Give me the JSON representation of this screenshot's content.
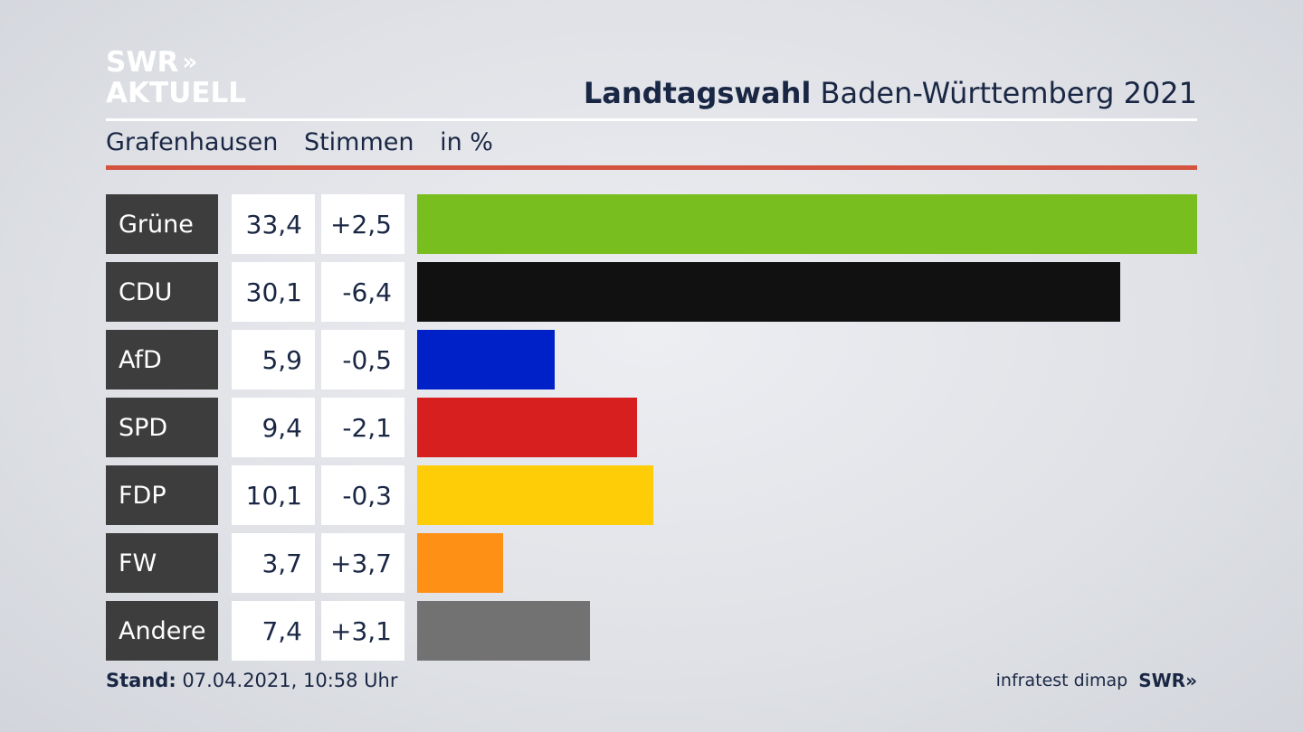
{
  "logo": {
    "line1": "SWR",
    "line2": "AKTUELL",
    "chevrons": "»"
  },
  "header": {
    "title_bold": "Landtagswahl",
    "title_rest": " Baden-Württemberg 2021"
  },
  "subheader": {
    "place": "Grafenhausen",
    "measure": "Stimmen",
    "unit": "in %"
  },
  "footer": {
    "stand_label": "Stand:",
    "stand_value": " 07.04.2021, 10:58 Uhr",
    "source": "infratest dimap",
    "brand": "SWR",
    "brand_chevrons": "»"
  },
  "chart_data": {
    "type": "bar",
    "orientation": "horizontal",
    "categories": [
      "Grüne",
      "CDU",
      "AfD",
      "SPD",
      "FDP",
      "FW",
      "Andere"
    ],
    "values": [
      33.4,
      30.1,
      5.9,
      9.4,
      10.1,
      3.7,
      7.4
    ],
    "values_label": [
      "33,4",
      "30,1",
      "5,9",
      "9,4",
      "10,1",
      "3,7",
      "7,4"
    ],
    "changes": [
      2.5,
      -6.4,
      -0.5,
      -2.1,
      -0.3,
      3.7,
      3.1
    ],
    "changes_label": [
      "+2,5",
      "-6,4",
      "-0,5",
      "-2,1",
      "-0,3",
      "+3,7",
      "+3,1"
    ],
    "colors": [
      "#78be1e",
      "#111111",
      "#0021c8",
      "#d71f1f",
      "#ffcc08",
      "#ff9016",
      "#727272"
    ],
    "xlim": [
      0,
      33.4
    ],
    "grid": false
  }
}
